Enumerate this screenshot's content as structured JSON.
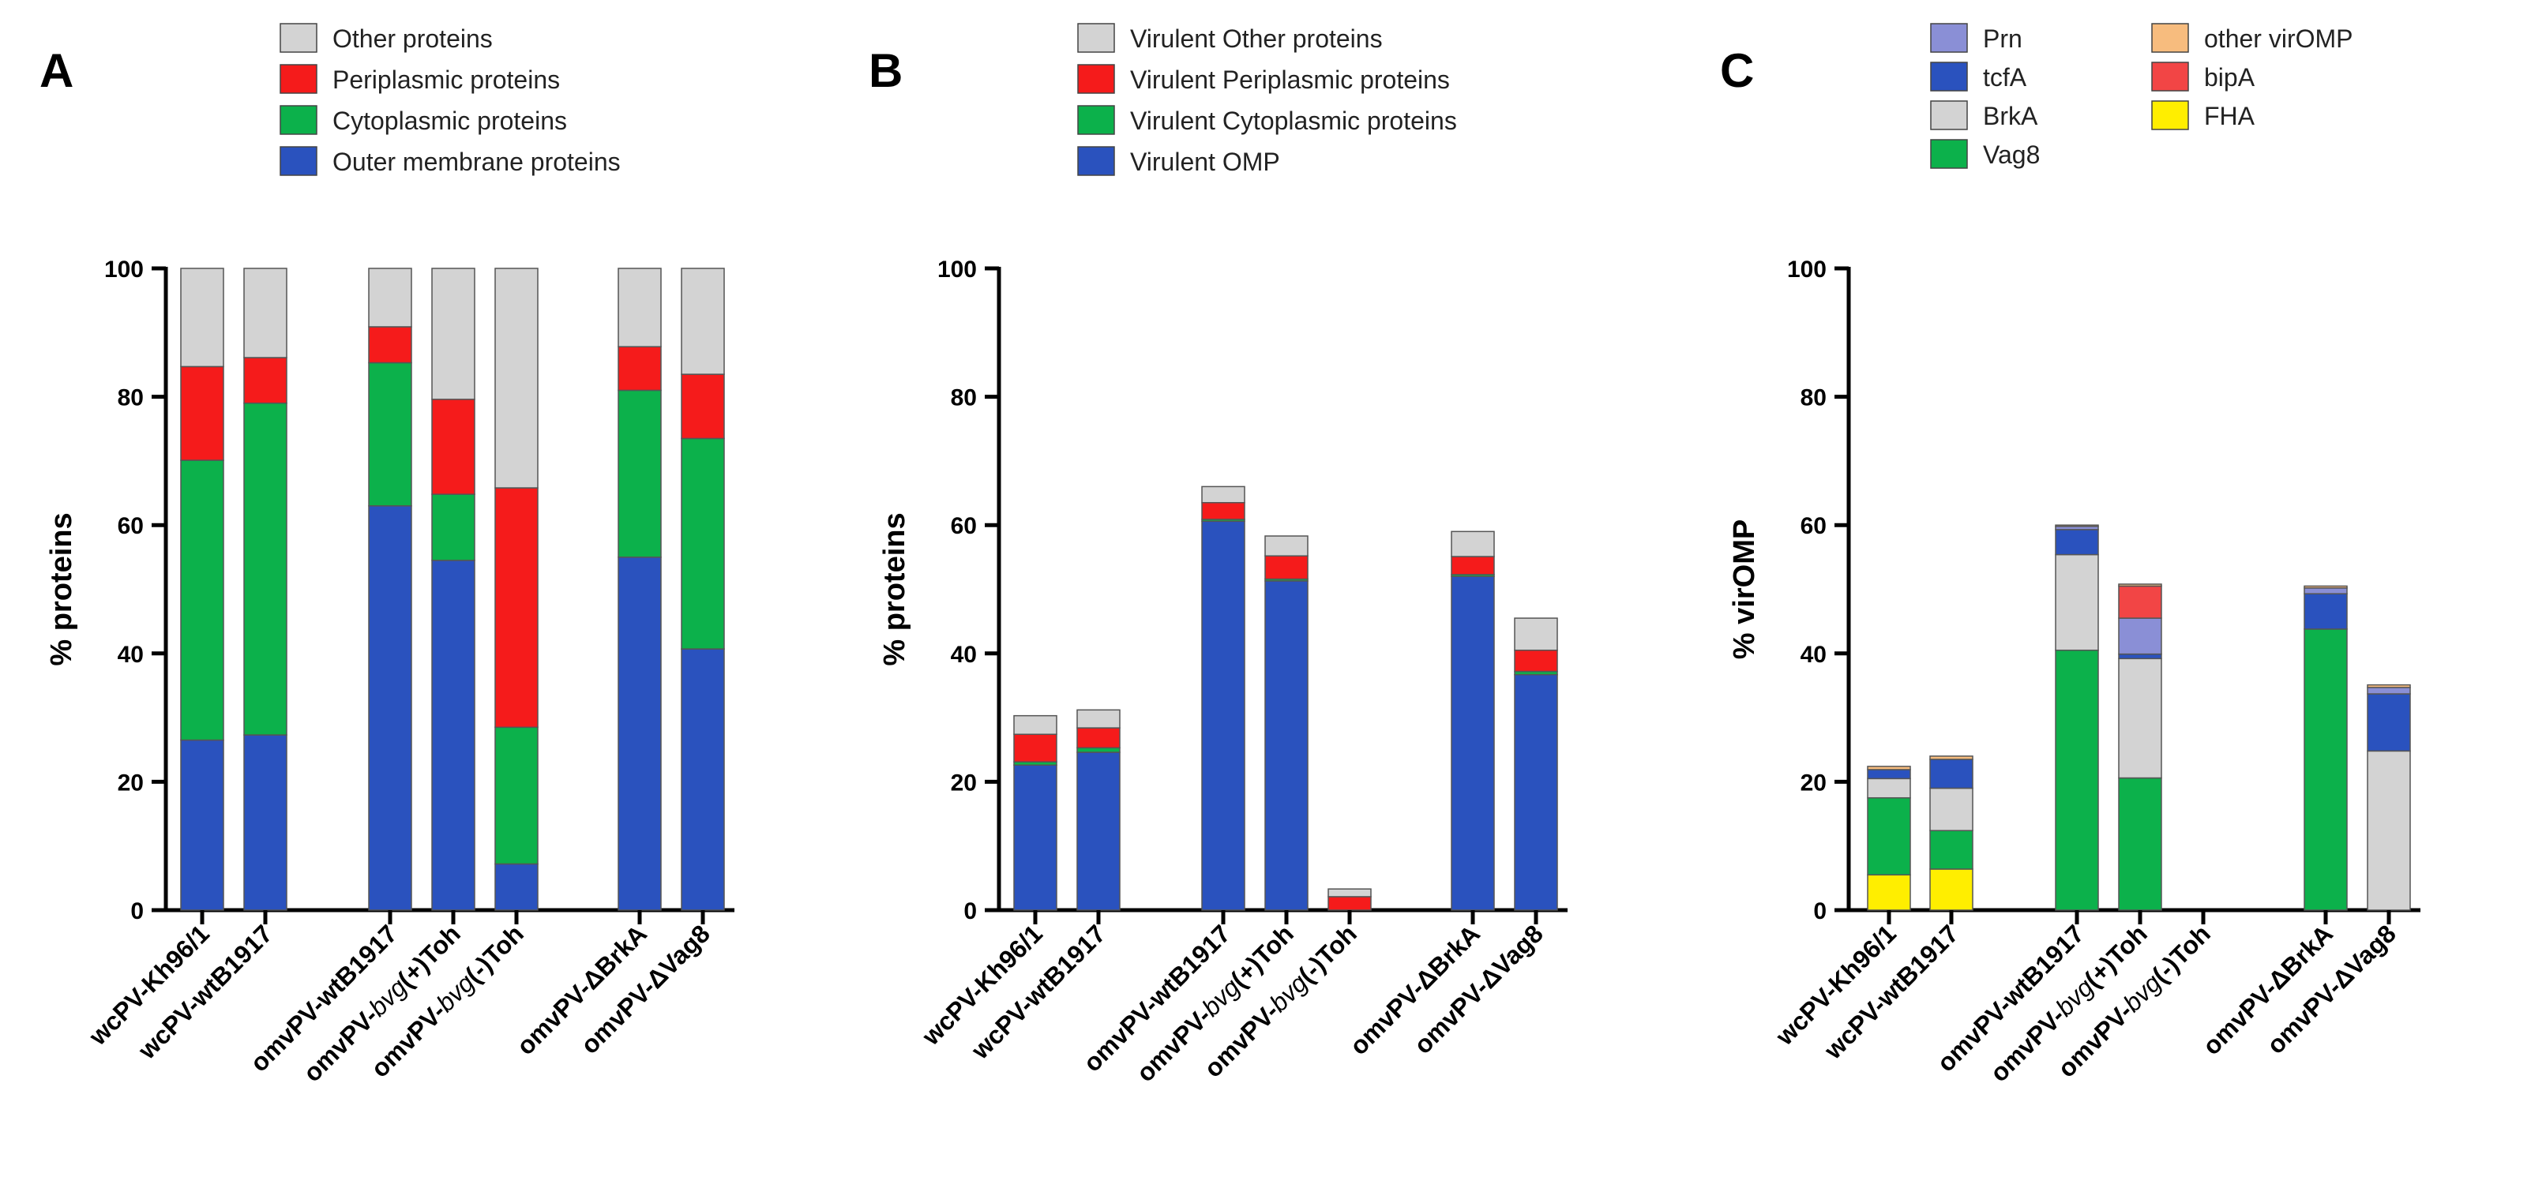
{
  "chart_data": [
    {
      "type": "bar",
      "stacked": true,
      "panel_label": "A",
      "ylabel": "% proteins",
      "ylim": [
        0,
        100
      ],
      "yticks": [
        "0",
        "20",
        "40",
        "60",
        "80",
        "100"
      ],
      "categories": [
        [
          "wcPV-Kh96/1"
        ],
        [
          "wcPV-wtB1917"
        ],
        [
          "omvPV-wtB1917"
        ],
        [
          "omvPV-",
          "bvg",
          "(+)Toh"
        ],
        [
          "omvPV-",
          "bvg",
          "(-)Toh"
        ],
        [
          "omvPV-ΔBrkA"
        ],
        [
          "omvPV-ΔVag8"
        ]
      ],
      "legend_order": [
        3,
        2,
        1,
        0
      ],
      "series": [
        {
          "name": "Outer membrane proteins",
          "color": "#2a52be",
          "values": [
            26.5,
            27.3,
            63,
            54.5,
            7.2,
            55,
            40.7
          ]
        },
        {
          "name": "Cytoplasmic proteins",
          "color": "#0cb14b",
          "values": [
            43.6,
            51.7,
            22.3,
            10.3,
            21.3,
            26,
            32.8
          ]
        },
        {
          "name": "Periplasmic proteins",
          "color": "#f51b1b",
          "values": [
            14.6,
            7.1,
            5.6,
            14.8,
            37.3,
            6.8,
            10
          ]
        },
        {
          "name": "Other proteins",
          "color": "#d3d3d3",
          "values": [
            15.3,
            13.9,
            9.1,
            20.4,
            34.2,
            12.2,
            16.5
          ]
        }
      ]
    },
    {
      "type": "bar",
      "stacked": true,
      "panel_label": "B",
      "ylabel": "% proteins",
      "ylim": [
        0,
        100
      ],
      "yticks": [
        "0",
        "20",
        "40",
        "60",
        "80",
        "100"
      ],
      "categories": [
        [
          "wcPV-Kh96/1"
        ],
        [
          "wcPV-wtB1917"
        ],
        [
          "omvPV-wtB1917"
        ],
        [
          "omvPV-",
          "bvg",
          "(+)Toh"
        ],
        [
          "omvPV-",
          "bvg",
          "(-)Toh"
        ],
        [
          "omvPV-ΔBrkA"
        ],
        [
          "omvPV-ΔVag8"
        ]
      ],
      "legend_order": [
        3,
        2,
        1,
        0
      ],
      "series": [
        {
          "name": "Virulent OMP",
          "color": "#2a52be",
          "values": [
            22.6,
            24.6,
            60.6,
            51.3,
            0,
            52,
            36.7
          ]
        },
        {
          "name": "Virulent Cytoplasmic proteins",
          "color": "#0cb14b",
          "values": [
            0.5,
            0.7,
            0.3,
            0.3,
            0,
            0.3,
            0.5
          ]
        },
        {
          "name": "Virulent Periplasmic proteins",
          "color": "#f51b1b",
          "values": [
            4.3,
            3.1,
            2.6,
            3.6,
            2.1,
            2.8,
            3.3
          ]
        },
        {
          "name": "Virulent Other proteins",
          "color": "#d3d3d3",
          "values": [
            2.9,
            2.8,
            2.5,
            3.1,
            1.2,
            3.9,
            5
          ]
        }
      ]
    },
    {
      "type": "bar",
      "stacked": true,
      "panel_label": "C",
      "ylabel": "% virOMP",
      "ylim": [
        0,
        100
      ],
      "yticks": [
        "0",
        "20",
        "40",
        "60",
        "80",
        "100"
      ],
      "categories": [
        [
          "wcPV-Kh96/1"
        ],
        [
          "wcPV-wtB1917"
        ],
        [
          "omvPV-wtB1917"
        ],
        [
          "omvPV-",
          "bvg",
          "(+)Toh"
        ],
        [
          "omvPV-",
          "bvg",
          "(-)Toh"
        ],
        [
          "omvPV-ΔBrkA"
        ],
        [
          "omvPV-ΔVag8"
        ]
      ],
      "legend_order": [
        4,
        3,
        2,
        1,
        6,
        5,
        0
      ],
      "series": [
        {
          "name": "FHA",
          "color": "#ffee00",
          "values": [
            5.5,
            6.4,
            0,
            0,
            0,
            0,
            0
          ]
        },
        {
          "name": "Vag8",
          "color": "#0cb14b",
          "values": [
            12,
            6,
            40.5,
            20.6,
            0,
            43.8,
            0
          ]
        },
        {
          "name": "BrkA",
          "color": "#d3d3d3",
          "values": [
            3,
            6.6,
            14.9,
            18.6,
            0,
            0,
            24.8
          ]
        },
        {
          "name": "tcfA",
          "color": "#2a52be",
          "values": [
            1.4,
            4.5,
            3.9,
            0.7,
            0,
            5.5,
            8.9
          ]
        },
        {
          "name": "Prn",
          "color": "#8a8fd6",
          "values": [
            0,
            0,
            0.5,
            5.6,
            0,
            0.9,
            1
          ]
        },
        {
          "name": "bipA",
          "color": "#f24545",
          "values": [
            0,
            0,
            0,
            5,
            0,
            0,
            0
          ]
        },
        {
          "name": "other virOMP",
          "color": "#f7bc7e",
          "values": [
            0.5,
            0.5,
            0.2,
            0.3,
            0,
            0.3,
            0.4
          ]
        }
      ]
    }
  ]
}
